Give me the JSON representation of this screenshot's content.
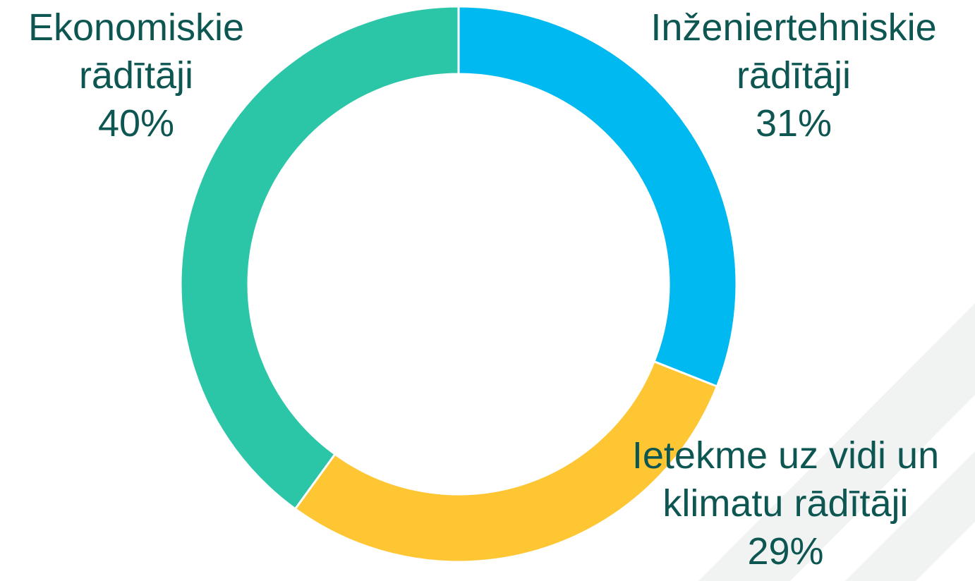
{
  "chart_data": {
    "type": "donut",
    "categories": [
      "Inženiertehniskie rādītāji",
      "Ietekme uz vidi un klimatu rādītāji",
      "Ekonomiskie rādītāji"
    ],
    "values": [
      31,
      29,
      40
    ],
    "value_labels": [
      "31%",
      "29%",
      "40%"
    ],
    "colors": [
      "#00b9f1",
      "#ffc633",
      "#2bc5a7"
    ]
  }
}
